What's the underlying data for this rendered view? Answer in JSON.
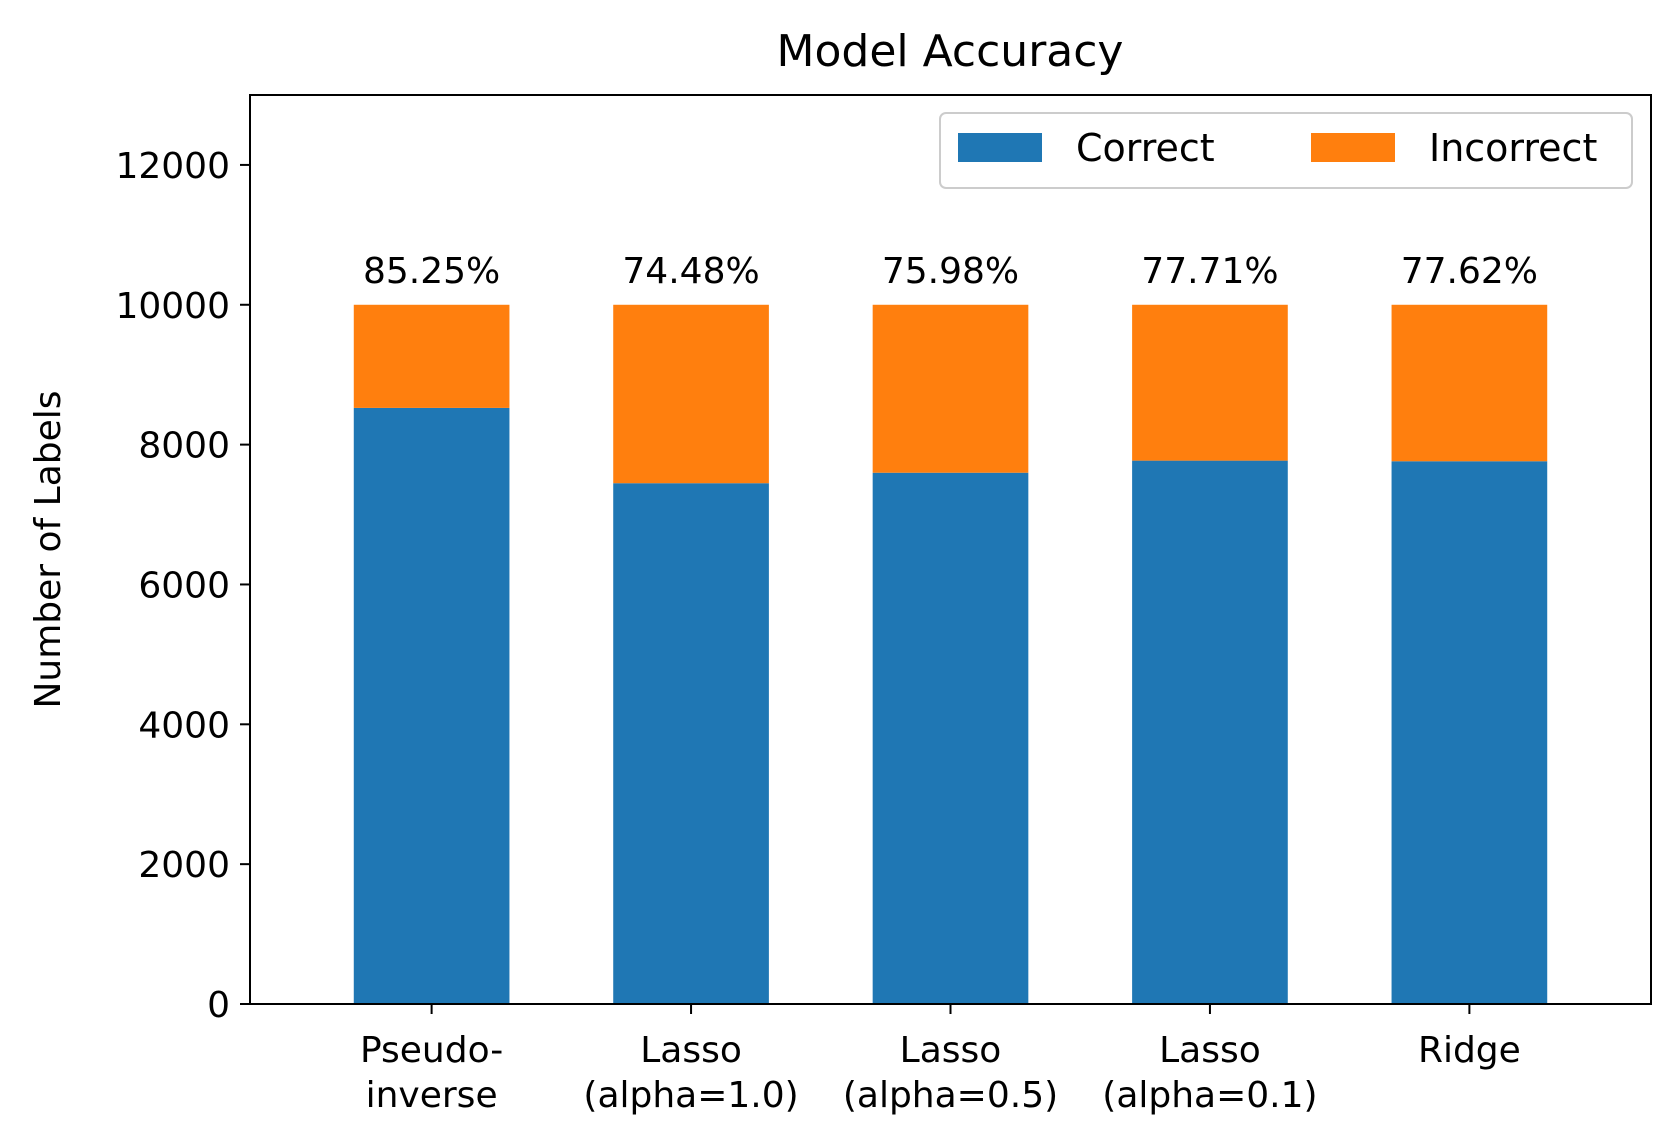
{
  "chart_data": {
    "type": "bar",
    "stacked": true,
    "title": "Model Accuracy",
    "xlabel": "",
    "ylabel": "Number of Labels",
    "ylim": [
      0,
      13000
    ],
    "yticks": [
      0,
      2000,
      4000,
      6000,
      8000,
      10000,
      12000
    ],
    "categories": [
      [
        "Pseudo-",
        "inverse"
      ],
      [
        "Lasso",
        "(alpha=1.0)"
      ],
      [
        "Lasso",
        "(alpha=0.5)"
      ],
      [
        "Lasso",
        "(alpha=0.1)"
      ],
      [
        "Ridge"
      ]
    ],
    "series": [
      {
        "name": "Correct",
        "color": "#1f77b4",
        "values": [
          8525,
          7448,
          7598,
          7771,
          7762
        ]
      },
      {
        "name": "Incorrect",
        "color": "#ff7f0e",
        "values": [
          1475,
          2552,
          2402,
          2229,
          2238
        ]
      }
    ],
    "bar_labels": [
      "85.25%",
      "74.48%",
      "75.98%",
      "77.71%",
      "77.62%"
    ],
    "legend": {
      "position": "top-right",
      "ncol": 2
    },
    "grid": false
  }
}
